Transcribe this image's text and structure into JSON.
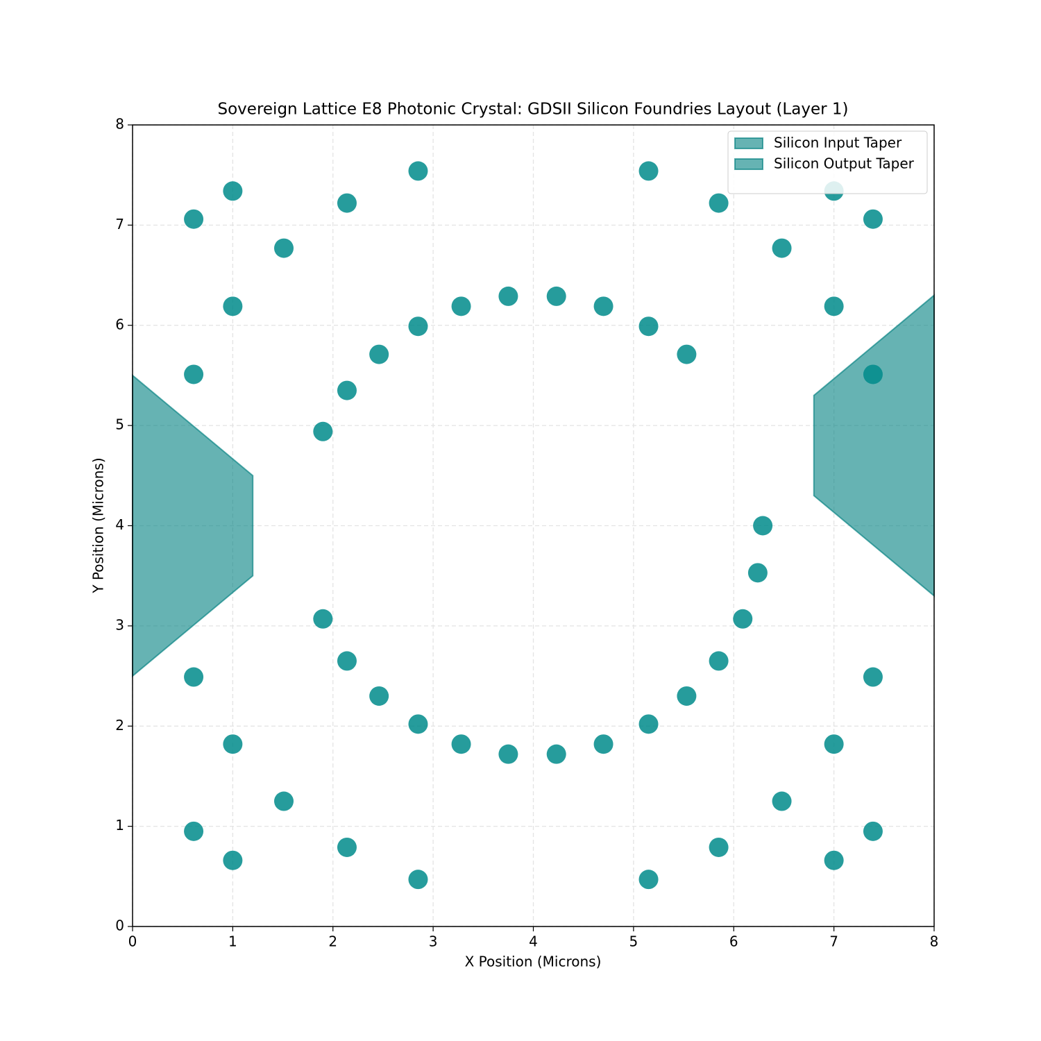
{
  "chart_data": {
    "type": "scatter",
    "title": "Sovereign Lattice E8 Photonic Crystal: GDSII Silicon Foundries Layout (Layer 1)",
    "x_label": "X Position (Microns)",
    "y_label": "Y Position (Microns)",
    "xlim": [
      0,
      8
    ],
    "ylim": [
      0,
      8
    ],
    "xticks": [
      0,
      1,
      2,
      3,
      4,
      5,
      6,
      7,
      8
    ],
    "yticks": [
      0,
      1,
      2,
      3,
      4,
      5,
      6,
      7,
      8
    ],
    "grid": true,
    "legend": "upper right",
    "color": "#008b8b",
    "x": [
      0.61,
      1.0,
      2.14,
      2.85,
      1.51,
      1.0,
      0.61,
      2.85,
      2.46,
      2.14,
      1.9,
      3.28,
      3.75,
      4.23,
      4.7,
      5.15,
      5.53,
      5.15,
      5.85,
      6.48,
      7.0,
      7.39,
      7.0,
      7.39,
      6.29,
      6.24,
      6.09,
      5.85,
      5.53,
      5.15,
      4.7,
      4.23,
      3.75,
      3.28,
      2.85,
      2.46,
      2.14,
      1.9,
      0.61,
      1.0,
      1.51,
      0.61,
      1.0,
      2.14,
      2.85,
      5.15,
      5.85,
      6.48,
      7.0,
      7.39,
      7.39,
      7.0
    ],
    "y": [
      7.06,
      7.34,
      7.22,
      7.54,
      6.77,
      6.19,
      5.51,
      5.99,
      5.71,
      5.35,
      4.94,
      6.19,
      6.29,
      6.29,
      6.19,
      5.99,
      5.71,
      7.54,
      7.22,
      6.77,
      7.34,
      7.06,
      6.19,
      5.51,
      4.0,
      3.53,
      3.07,
      2.65,
      2.3,
      2.02,
      1.82,
      1.72,
      1.72,
      1.82,
      2.02,
      2.3,
      2.65,
      3.07,
      2.49,
      1.82,
      1.25,
      0.95,
      0.66,
      0.79,
      0.47,
      0.47,
      0.79,
      1.25,
      1.82,
      2.49,
      0.95,
      0.66
    ],
    "polygons": [
      {
        "name": "Silicon Input Taper",
        "color": "#008080",
        "x": [
          0,
          1.2,
          1.2,
          0
        ],
        "y": [
          5.5,
          4.5,
          3.5,
          2.5
        ]
      },
      {
        "name": "Silicon Output Taper",
        "color": "#008080",
        "x": [
          6.8,
          8,
          8,
          6.8
        ],
        "y": [
          5.3,
          6.3,
          3.3,
          4.3
        ]
      }
    ]
  }
}
